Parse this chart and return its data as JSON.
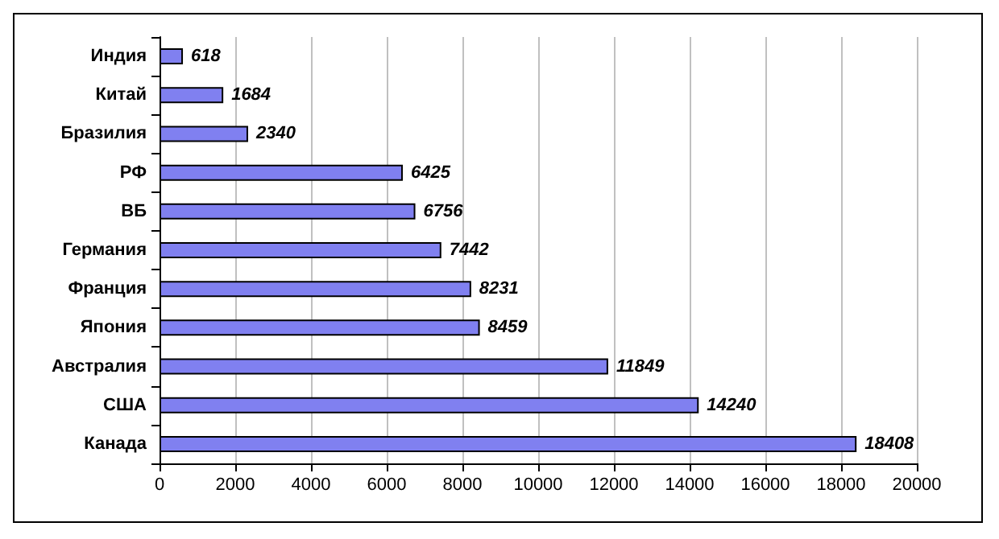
{
  "chart_data": {
    "type": "bar",
    "orientation": "horizontal",
    "categories": [
      "Индия",
      "Китай",
      "Бразилия",
      "РФ",
      "ВБ",
      "Германия",
      "Франция",
      "Япония",
      "Австралия",
      "США",
      "Канада"
    ],
    "values": [
      618,
      1684,
      2340,
      6425,
      6756,
      7442,
      8231,
      8459,
      11849,
      14240,
      18408
    ],
    "color": "#8080f0",
    "xlim": [
      0,
      20000
    ],
    "xticks": [
      0,
      2000,
      4000,
      6000,
      8000,
      10000,
      12000,
      14000,
      16000,
      18000,
      20000
    ],
    "grid": "x",
    "data_labels": true
  }
}
